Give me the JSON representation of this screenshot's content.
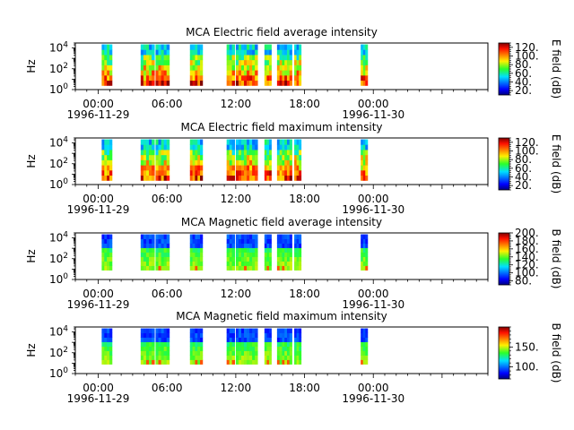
{
  "chart_data": [
    {
      "type": "heatmap",
      "title": "MCA  Electric field average intensity",
      "ylabel": "Hz",
      "colorbar_label": "E field (dB)",
      "colorbar_ticks": [
        "20.",
        "40.",
        "60.",
        "80.",
        "100.",
        "120."
      ],
      "colorbar_range": [
        10,
        130
      ],
      "colormap": "jet",
      "yscale": "log",
      "ylim": [
        1,
        30000
      ],
      "y_ticks": [
        {
          "exp": "0",
          "value": 1
        },
        {
          "exp": "2",
          "value": 100
        },
        {
          "exp": "4",
          "value": 10000
        }
      ],
      "x_range_hours": [
        -2,
        34
      ],
      "x_ticks": [
        {
          "label": "00:00",
          "date": "1996-11-29",
          "hour": 0
        },
        {
          "label": "06:00",
          "hour": 6
        },
        {
          "label": "12:00",
          "hour": 12
        },
        {
          "label": "18:00",
          "hour": 18
        },
        {
          "label": "00:00",
          "date": "1996-11-30",
          "hour": 24
        }
      ],
      "data_intervals_hours": [
        [
          0.3,
          1.2
        ],
        [
          3.7,
          4.9
        ],
        [
          5.0,
          6.2
        ],
        [
          8.0,
          9.1
        ],
        [
          11.2,
          11.9
        ],
        [
          12.0,
          13.9
        ],
        [
          14.5,
          15.1
        ],
        [
          15.6,
          16.9
        ],
        [
          17.1,
          17.7
        ],
        [
          22.9,
          23.5
        ]
      ],
      "intensity_level": "high"
    },
    {
      "type": "heatmap",
      "title": "MCA  Electric field maximum intensity",
      "ylabel": "Hz",
      "colorbar_label": "E field (dB)",
      "colorbar_ticks": [
        "20.",
        "40.",
        "60.",
        "80.",
        "100.",
        "120."
      ],
      "colorbar_range": [
        10,
        130
      ],
      "colormap": "jet",
      "yscale": "log",
      "ylim": [
        1,
        30000
      ],
      "y_ticks": [
        {
          "exp": "0",
          "value": 1
        },
        {
          "exp": "2",
          "value": 100
        },
        {
          "exp": "4",
          "value": 10000
        }
      ],
      "x_range_hours": [
        -2,
        34
      ],
      "x_ticks": [
        {
          "label": "00:00",
          "date": "1996-11-29",
          "hour": 0
        },
        {
          "label": "06:00",
          "hour": 6
        },
        {
          "label": "12:00",
          "hour": 12
        },
        {
          "label": "18:00",
          "hour": 18
        },
        {
          "label": "00:00",
          "date": "1996-11-30",
          "hour": 24
        }
      ],
      "data_intervals_hours": [
        [
          0.3,
          1.2
        ],
        [
          3.7,
          4.9
        ],
        [
          5.0,
          6.2
        ],
        [
          8.0,
          9.1
        ],
        [
          11.2,
          11.9
        ],
        [
          12.0,
          13.9
        ],
        [
          14.5,
          15.1
        ],
        [
          15.6,
          16.9
        ],
        [
          17.1,
          17.7
        ],
        [
          22.9,
          23.5
        ]
      ],
      "intensity_level": "high"
    },
    {
      "type": "heatmap",
      "title": "MCA  Magnetic field average intensity",
      "ylabel": "Hz",
      "colorbar_label": "B field (dB)",
      "colorbar_ticks": [
        "80.",
        "100.",
        "120.",
        "140.",
        "160.",
        "180.",
        "200."
      ],
      "colorbar_range": [
        70,
        200
      ],
      "colormap": "jet",
      "yscale": "log",
      "ylim": [
        1,
        30000
      ],
      "y_ticks": [
        {
          "exp": "0",
          "value": 1
        },
        {
          "exp": "2",
          "value": 100
        },
        {
          "exp": "4",
          "value": 10000
        }
      ],
      "x_range_hours": [
        -2,
        34
      ],
      "x_ticks": [
        {
          "label": "00:00",
          "date": "1996-11-29",
          "hour": 0
        },
        {
          "label": "06:00",
          "hour": 6
        },
        {
          "label": "12:00",
          "hour": 12
        },
        {
          "label": "18:00",
          "hour": 18
        },
        {
          "label": "00:00",
          "date": "1996-11-30",
          "hour": 24
        }
      ],
      "data_intervals_hours": [
        [
          0.3,
          1.2
        ],
        [
          3.7,
          4.9
        ],
        [
          5.0,
          6.2
        ],
        [
          8.0,
          9.1
        ],
        [
          11.2,
          11.9
        ],
        [
          12.0,
          13.9
        ],
        [
          14.5,
          15.1
        ],
        [
          15.6,
          16.9
        ],
        [
          17.1,
          17.7
        ],
        [
          22.9,
          23.5
        ]
      ],
      "intensity_level": "low"
    },
    {
      "type": "heatmap",
      "title": "MCA  Magnetic field maximum intensity",
      "ylabel": "Hz",
      "colorbar_label": "B field (dB)",
      "colorbar_ticks": [
        "100.",
        "150."
      ],
      "colorbar_range": [
        70,
        200
      ],
      "colormap": "jet",
      "yscale": "log",
      "ylim": [
        1,
        30000
      ],
      "y_ticks": [
        {
          "exp": "0",
          "value": 1
        },
        {
          "exp": "2",
          "value": 100
        },
        {
          "exp": "4",
          "value": 10000
        }
      ],
      "x_range_hours": [
        -2,
        34
      ],
      "x_ticks": [
        {
          "label": "00:00",
          "date": "1996-11-29",
          "hour": 0
        },
        {
          "label": "06:00",
          "hour": 6
        },
        {
          "label": "12:00",
          "hour": 12
        },
        {
          "label": "18:00",
          "hour": 18
        },
        {
          "label": "00:00",
          "date": "1996-11-30",
          "hour": 24
        }
      ],
      "data_intervals_hours": [
        [
          0.3,
          1.2
        ],
        [
          3.7,
          4.9
        ],
        [
          5.0,
          6.2
        ],
        [
          8.0,
          9.1
        ],
        [
          11.2,
          11.9
        ],
        [
          12.0,
          13.9
        ],
        [
          14.5,
          15.1
        ],
        [
          15.6,
          16.9
        ],
        [
          17.1,
          17.7
        ],
        [
          22.9,
          23.5
        ]
      ],
      "intensity_level": "low"
    }
  ]
}
